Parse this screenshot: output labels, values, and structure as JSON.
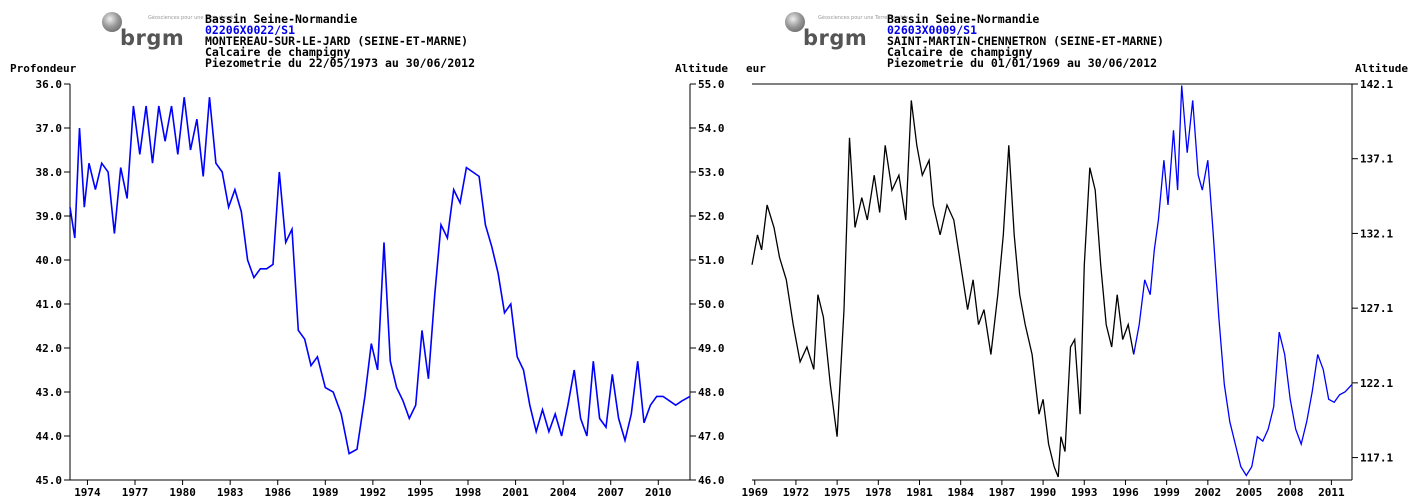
{
  "charts": [
    {
      "logo": "brgm",
      "header": {
        "basin": "Bassin Seine-Normandie",
        "code": "02206X0022/S1",
        "commune": "MONTEREAU-SUR-LE-JARD (SEINE-ET-MARNE)",
        "aquifer": "Calcaire de champigny",
        "period": "Piezometrie du 22/05/1973 au 30/06/2012"
      },
      "left_axis_label": "Profondeur",
      "right_axis_label": "Altitude",
      "left_ticks": [
        "36.0",
        "37.0",
        "38.0",
        "39.0",
        "40.0",
        "41.0",
        "42.0",
        "43.0",
        "44.0",
        "45.0"
      ],
      "right_ticks": [
        "55.0",
        "54.0",
        "53.0",
        "52.0",
        "51.0",
        "50.0",
        "49.0",
        "48.0",
        "47.0",
        "46.0"
      ],
      "x_ticks": [
        "1974",
        "1977",
        "1980",
        "1983",
        "1986",
        "1989",
        "1992",
        "1995",
        "1998",
        "2001",
        "2004",
        "2007",
        "2010"
      ],
      "line_color": "#0000ff"
    },
    {
      "logo": "brgm",
      "header": {
        "basin": "Bassin Seine-Normandie",
        "code": "02603X0009/S1",
        "commune": "SAINT-MARTIN-CHENNETRON (SEINE-ET-MARNE)",
        "aquifer": "Calcaire de champigny",
        "period": "Piezometrie du 01/01/1969 au 30/06/2012"
      },
      "left_axis_label": "eur",
      "right_axis_label": "Altitude",
      "right_ticks": [
        "142.1",
        "137.1",
        "132.1",
        "127.1",
        "122.1",
        "117.1"
      ],
      "x_ticks": [
        "1969",
        "1972",
        "1975",
        "1978",
        "1981",
        "1984",
        "1987",
        "1990",
        "1993",
        "1996",
        "1999",
        "2002",
        "2005",
        "2008",
        "2011"
      ],
      "line_color_old": "#000000",
      "line_color_new": "#0000ff"
    }
  ],
  "chart_data": [
    {
      "type": "line",
      "title": "Piezometrie du 22/05/1973 au 30/06/2012",
      "ylabel": "Profondeur",
      "y2label": "Altitude",
      "ylim": [
        36.0,
        45.0
      ],
      "y_inverted": true,
      "y2lim": [
        55.0,
        46.0
      ],
      "xlim": [
        1973.4,
        2012.5
      ],
      "series": [
        {
          "color": "#0000ff",
          "x": [
            1973.4,
            1973.7,
            1974.0,
            1974.3,
            1974.6,
            1975.0,
            1975.4,
            1975.8,
            1976.2,
            1976.6,
            1977.0,
            1977.4,
            1977.8,
            1978.2,
            1978.6,
            1979.0,
            1979.4,
            1979.8,
            1980.2,
            1980.6,
            1981.0,
            1981.4,
            1981.8,
            1982.2,
            1982.6,
            1983.0,
            1983.4,
            1983.8,
            1984.2,
            1984.6,
            1985.0,
            1985.4,
            1985.8,
            1986.2,
            1986.6,
            1987.0,
            1987.4,
            1987.8,
            1988.2,
            1988.6,
            1989.0,
            1989.5,
            1990.0,
            1990.5,
            1991.0,
            1991.5,
            1992.0,
            1992.4,
            1992.8,
            1993.2,
            1993.6,
            1994.0,
            1994.4,
            1994.8,
            1995.2,
            1995.6,
            1996.0,
            1996.4,
            1996.8,
            1997.2,
            1997.6,
            1998.0,
            1998.4,
            1998.8,
            1999.2,
            1999.6,
            2000.0,
            2000.4,
            2000.8,
            2001.2,
            2001.6,
            2002.0,
            2002.4,
            2002.8,
            2003.2,
            2003.6,
            2004.0,
            2004.4,
            2004.8,
            2005.2,
            2005.6,
            2006.0,
            2006.4,
            2006.8,
            2007.2,
            2007.6,
            2008.0,
            2008.4,
            2008.8,
            2009.2,
            2009.6,
            2010.0,
            2010.4,
            2010.8,
            2011.2,
            2011.6,
            2012.0,
            2012.5
          ],
          "y": [
            38.8,
            39.5,
            37.0,
            38.8,
            37.8,
            38.4,
            37.8,
            38.0,
            39.4,
            37.9,
            38.6,
            36.5,
            37.6,
            36.5,
            37.8,
            36.5,
            37.3,
            36.5,
            37.6,
            36.3,
            37.5,
            36.8,
            38.1,
            36.3,
            37.8,
            38.0,
            38.8,
            38.4,
            38.9,
            40.0,
            40.4,
            40.2,
            40.2,
            40.1,
            38.0,
            39.6,
            39.3,
            41.6,
            41.8,
            42.4,
            42.2,
            42.9,
            43.0,
            43.5,
            44.4,
            44.3,
            43.1,
            41.9,
            42.5,
            39.6,
            42.3,
            42.9,
            43.2,
            43.6,
            43.3,
            41.6,
            42.7,
            40.8,
            39.2,
            39.5,
            38.4,
            38.7,
            37.9,
            38.0,
            38.1,
            39.2,
            39.7,
            40.3,
            41.2,
            41.0,
            42.2,
            42.5,
            43.3,
            43.9,
            43.4,
            43.9,
            43.5,
            44.0,
            43.3,
            42.5,
            43.6,
            44.0,
            42.3,
            43.6,
            43.8,
            42.6,
            43.6,
            44.1,
            43.5,
            42.3,
            43.7,
            43.3,
            43.1,
            43.1,
            43.2,
            43.3,
            43.2,
            43.1
          ]
        }
      ]
    },
    {
      "type": "line",
      "title": "Piezometrie du 01/01/1969 au 30/06/2012",
      "y2label": "Altitude",
      "y2lim": [
        115.6,
        142.1
      ],
      "xlim": [
        1968.8,
        2012.5
      ],
      "series": [
        {
          "color": "#000000",
          "x": [
            1968.8,
            1969.2,
            1969.5,
            1969.9,
            1970.4,
            1970.8,
            1971.3,
            1971.8,
            1972.3,
            1972.8,
            1973.3,
            1973.6,
            1974.0,
            1974.5,
            1975.0,
            1975.5,
            1975.9,
            1976.3,
            1976.8,
            1977.2,
            1977.7,
            1978.1,
            1978.5,
            1979.0,
            1979.5,
            1980.0,
            1980.4,
            1980.8,
            1981.2,
            1981.7,
            1982.0,
            1982.5,
            1983.0,
            1983.5,
            1984.0,
            1984.5,
            1984.9,
            1985.3,
            1985.7,
            1986.2,
            1986.7,
            1987.1,
            1987.5,
            1987.9,
            1988.3,
            1988.7,
            1989.2,
            1989.7,
            1990.0,
            1990.4,
            1990.8,
            1991.1,
            1991.3,
            1991.6,
            1992.0,
            1992.3,
            1992.7,
            1993.0,
            1993.4,
            1993.8,
            1994.2,
            1994.6,
            1995.0,
            1995.4,
            1995.8,
            1996.2,
            1996.6
          ],
          "y": [
            130.0,
            132.0,
            131.0,
            134.0,
            132.5,
            130.5,
            129.0,
            126.0,
            123.5,
            124.5,
            123.0,
            128.0,
            126.5,
            122.0,
            118.5,
            127.0,
            138.5,
            132.5,
            134.5,
            133.0,
            136.0,
            133.5,
            138.0,
            135.0,
            136.0,
            133.0,
            141.0,
            138.0,
            136.0,
            137.0,
            134.0,
            132.0,
            134.0,
            133.0,
            130.0,
            127.0,
            129.0,
            126.0,
            127.0,
            124.0,
            128.0,
            132.0,
            138.0,
            132.0,
            128.0,
            126.0,
            124.0,
            120.0,
            121.0,
            118.0,
            116.5,
            115.8,
            118.5,
            117.5,
            124.5,
            125.0,
            120.0,
            130.0,
            136.5,
            135.0,
            130.0,
            126.0,
            124.5,
            128.0,
            125.0,
            126.0,
            124.0
          ]
        },
        {
          "color": "#0000ff",
          "x": [
            1996.6,
            1997.0,
            1997.4,
            1997.8,
            1998.1,
            1998.4,
            1998.8,
            1999.1,
            1999.5,
            1999.8,
            2000.1,
            2000.5,
            2000.9,
            2001.3,
            2001.6,
            2002.0,
            2002.4,
            2002.8,
            2003.2,
            2003.6,
            2004.0,
            2004.4,
            2004.8,
            2005.2,
            2005.6,
            2006.0,
            2006.4,
            2006.8,
            2007.2,
            2007.6,
            2008.0,
            2008.4,
            2008.8,
            2009.2,
            2009.6,
            2010.0,
            2010.4,
            2010.8,
            2011.2,
            2011.6,
            2012.0,
            2012.5
          ],
          "y": [
            124.0,
            126.0,
            129.0,
            128.0,
            131.0,
            133.0,
            137.0,
            134.0,
            139.0,
            135.0,
            142.0,
            137.5,
            141.0,
            136.0,
            135.0,
            137.0,
            132.0,
            126.5,
            122.0,
            119.5,
            118.0,
            116.5,
            115.9,
            116.5,
            118.5,
            118.2,
            119.0,
            120.5,
            125.5,
            124.0,
            121.0,
            119.0,
            118.0,
            119.5,
            121.5,
            124.0,
            123.0,
            121.0,
            120.8,
            121.3,
            121.5,
            122.0
          ]
        }
      ]
    }
  ]
}
